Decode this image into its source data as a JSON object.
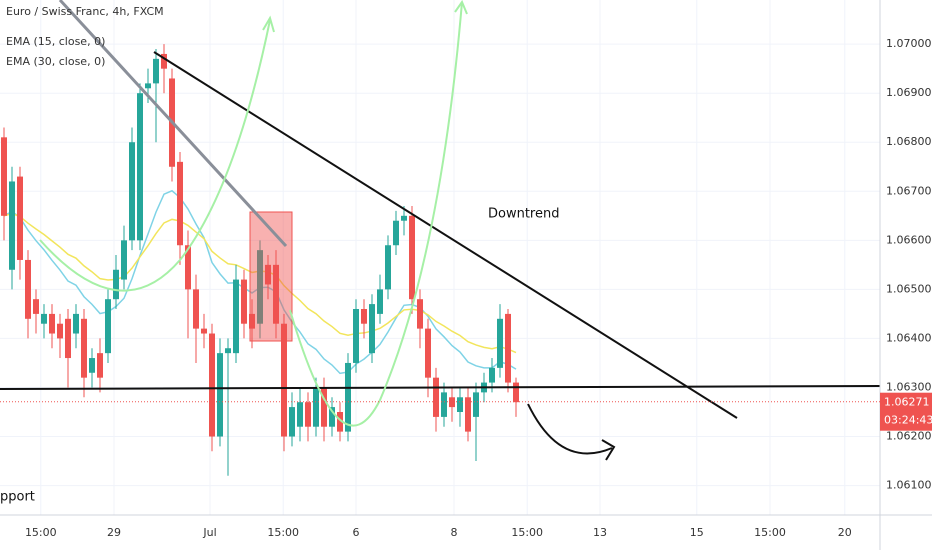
{
  "chart_data": {
    "type": "candlestick",
    "title": "Euro / Swiss Franc, 4h, FXCM",
    "indicators": [
      {
        "name": "EMA (15, close, 0)",
        "period": 15,
        "color": "#7fd3e6"
      },
      {
        "name": "EMA (30, close, 0)",
        "period": 30,
        "color": "#f2e55c"
      }
    ],
    "annotations": [
      "Downtrend",
      "pport"
    ],
    "up_color": "#26a69a",
    "down_color": "#ef5350",
    "last_price": {
      "value": 1.06271,
      "label": "1.06271"
    },
    "countdown": "03:24:43",
    "xlim": [
      -0.5,
      109.5
    ],
    "xticks": [
      {
        "value": 4.6,
        "label": "15:00"
      },
      {
        "value": 13.75,
        "label": "29"
      },
      {
        "value": 25.75,
        "label": "Jul"
      },
      {
        "value": 34.9,
        "label": "15:00"
      },
      {
        "value": 44,
        "label": "6"
      },
      {
        "value": 56.25,
        "label": "8"
      },
      {
        "value": 65.4,
        "label": "15:00"
      },
      {
        "value": 74.5,
        "label": "13"
      },
      {
        "value": 86.6,
        "label": "15"
      },
      {
        "value": 95.75,
        "label": "15:00"
      },
      {
        "value": 105.1,
        "label": "20"
      }
    ],
    "ylim": [
      1.0604,
      1.0709
    ],
    "yticks": [
      {
        "value": 1.061,
        "label": "1.06100"
      },
      {
        "value": 1.062,
        "label": "1.06200"
      },
      {
        "value": 1.063,
        "label": "1.06300"
      },
      {
        "value": 1.064,
        "label": "1.06400"
      },
      {
        "value": 1.065,
        "label": "1.06500"
      },
      {
        "value": 1.066,
        "label": "1.06600"
      },
      {
        "value": 1.067,
        "label": "1.06700"
      },
      {
        "value": 1.068,
        "label": "1.06800"
      },
      {
        "value": 1.069,
        "label": "1.06900"
      },
      {
        "value": 1.07,
        "label": "1.07000"
      }
    ],
    "grid": true,
    "open": [
      1.0681,
      1.0654,
      1.0673,
      1.0656,
      1.0648,
      1.0643,
      1.0645,
      1.0643,
      1.0644,
      1.0641,
      1.0644,
      1.0633,
      1.0637,
      1.0637,
      1.0648,
      1.0652,
      1.066,
      1.066,
      1.0691,
      1.0692,
      1.0698,
      1.0693,
      1.0676,
      1.0659,
      1.065,
      1.0642,
      1.0641,
      1.062,
      1.0637,
      1.0637,
      1.0652,
      1.0645,
      1.0643,
      1.0655,
      1.0655,
      1.0643,
      1.062,
      1.0622,
      1.0627,
      1.0622,
      1.063,
      1.0622,
      1.0625,
      1.0621,
      1.0635,
      1.0646,
      1.0637,
      1.0645,
      1.065,
      1.0659,
      1.0664,
      1.0665,
      1.0648,
      1.0642,
      1.0632,
      1.0624,
      1.0628,
      1.0625,
      1.0628,
      1.0624,
      1.0629,
      1.0631,
      1.0634,
      1.0645,
      1.0631
    ],
    "high": [
      1.0683,
      1.0675,
      1.0675,
      1.0658,
      1.065,
      1.0647,
      1.0647,
      1.0645,
      1.0646,
      1.0647,
      1.0646,
      1.0638,
      1.064,
      1.065,
      1.0657,
      1.0663,
      1.0683,
      1.0692,
      1.0695,
      1.0699,
      1.07,
      1.0695,
      1.0678,
      1.0662,
      1.0653,
      1.0645,
      1.0643,
      1.064,
      1.064,
      1.0655,
      1.0654,
      1.0648,
      1.066,
      1.0657,
      1.0658,
      1.0645,
      1.0629,
      1.063,
      1.0629,
      1.0632,
      1.0632,
      1.0628,
      1.0627,
      1.0637,
      1.0648,
      1.0648,
      1.0649,
      1.0653,
      1.0661,
      1.0666,
      1.0667,
      1.0667,
      1.065,
      1.0644,
      1.0634,
      1.0631,
      1.063,
      1.063,
      1.063,
      1.0631,
      1.0633,
      1.0636,
      1.0647,
      1.0646,
      1.0632
    ],
    "low": [
      1.066,
      1.065,
      1.0652,
      1.064,
      1.0641,
      1.064,
      1.0638,
      1.0636,
      1.063,
      1.0638,
      1.0628,
      1.063,
      1.0629,
      1.0635,
      1.0646,
      1.065,
      1.0658,
      1.0658,
      1.0688,
      1.068,
      1.069,
      1.0672,
      1.0655,
      1.064,
      1.0635,
      1.0638,
      1.0617,
      1.0618,
      1.0612,
      1.0635,
      1.064,
      1.0638,
      1.064,
      1.0648,
      1.064,
      1.0617,
      1.0618,
      1.0619,
      1.0619,
      1.062,
      1.0619,
      1.062,
      1.0619,
      1.0619,
      1.0633,
      1.064,
      1.0635,
      1.0643,
      1.0648,
      1.0657,
      1.0661,
      1.0645,
      1.0638,
      1.0628,
      1.0621,
      1.0622,
      1.0623,
      1.0622,
      1.0619,
      1.0615,
      1.0627,
      1.0629,
      1.0632,
      1.0629,
      1.0624
    ],
    "close": [
      1.0665,
      1.0672,
      1.0656,
      1.0644,
      1.0645,
      1.0645,
      1.0641,
      1.064,
      1.0636,
      1.0645,
      1.0632,
      1.0636,
      1.0632,
      1.0648,
      1.0654,
      1.066,
      1.068,
      1.069,
      1.0692,
      1.0697,
      1.0695,
      1.0675,
      1.0659,
      1.065,
      1.0642,
      1.0641,
      1.062,
      1.0637,
      1.0638,
      1.0652,
      1.0643,
      1.0642,
      1.0658,
      1.0651,
      1.0643,
      1.062,
      1.0626,
      1.0627,
      1.0622,
      1.063,
      1.0622,
      1.0626,
      1.0621,
      1.0635,
      1.0646,
      1.0643,
      1.0647,
      1.065,
      1.0659,
      1.0664,
      1.0665,
      1.0648,
      1.0642,
      1.0632,
      1.0624,
      1.0629,
      1.0626,
      1.0628,
      1.0621,
      1.0629,
      1.0631,
      1.0634,
      1.0644,
      1.0631,
      1.0627
    ]
  }
}
